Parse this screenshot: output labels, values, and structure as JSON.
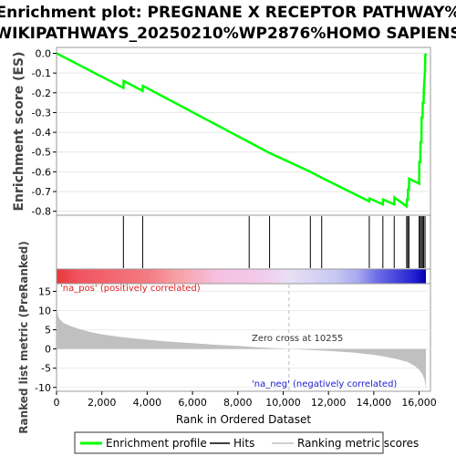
{
  "chart_data": {
    "type": "line",
    "title": [
      "Enrichment plot: PREGNANE X RECEPTOR PATHWAY%",
      "WIKIPATHWAYS_20250210%WP2876%HOMO SAPIENS"
    ],
    "xlabel": "Rank in Ordered Dataset",
    "ylabel_top": "Enrichment score (ES)",
    "ylabel_bottom": "Ranked list metric (PreRanked)",
    "xlim": [
      0,
      16500
    ],
    "x_ticks": [
      0,
      2000,
      4000,
      6000,
      8000,
      10000,
      12000,
      14000,
      16000
    ],
    "x_tick_labels": [
      "0",
      "2,000",
      "4,000",
      "6,000",
      "8,000",
      "10,000",
      "12,000",
      "14,000",
      "16,000"
    ],
    "es_ylim": [
      -0.82,
      0.03
    ],
    "es_ticks": [
      0.0,
      -0.1,
      -0.2,
      -0.3,
      -0.4,
      -0.5,
      -0.6,
      -0.7,
      -0.8
    ],
    "es_tick_labels": [
      "0.0",
      "-0.1",
      "-0.2",
      "-0.3",
      "-0.4",
      "-0.5",
      "-0.6",
      "-0.7",
      "-0.8"
    ],
    "es_curve": {
      "x": [
        0,
        2950,
        2960,
        3800,
        3810,
        8500,
        9400,
        11200,
        11700,
        13800,
        13810,
        14400,
        14410,
        14900,
        14910,
        15450,
        15460,
        15500,
        15510,
        15550,
        15560,
        16000,
        16010,
        16050,
        16060,
        16100,
        16110,
        16150,
        16160,
        16200,
        16210,
        16260,
        16270,
        16300
      ],
      "y": [
        0.0,
        -0.175,
        -0.14,
        -0.19,
        -0.165,
        -0.45,
        -0.505,
        -0.6,
        -0.63,
        -0.75,
        -0.735,
        -0.765,
        -0.74,
        -0.765,
        -0.73,
        -0.775,
        -0.74,
        -0.74,
        -0.69,
        -0.69,
        -0.635,
        -0.66,
        -0.55,
        -0.55,
        -0.45,
        -0.45,
        -0.32,
        -0.33,
        -0.25,
        -0.25,
        -0.18,
        -0.09,
        -0.01,
        0.0
      ],
      "color": "#00ff00"
    },
    "hits": [
      2950,
      3800,
      8500,
      9400,
      11200,
      11700,
      13800,
      14400,
      14900,
      15450,
      15500,
      15550,
      16000,
      16050,
      16100,
      16150,
      16200,
      16260
    ],
    "heatmap_stops": [
      {
        "x": 0,
        "color": "#e8383c"
      },
      {
        "x": 1000,
        "color": "#f05560"
      },
      {
        "x": 4000,
        "color": "#f47a82"
      },
      {
        "x": 5300,
        "color": "#f7a0a5"
      },
      {
        "x": 7100,
        "color": "#f6c0e0"
      },
      {
        "x": 9100,
        "color": "#f1cbeb"
      },
      {
        "x": 10255,
        "color": "#e8e0f4"
      },
      {
        "x": 12300,
        "color": "#c8c8f4"
      },
      {
        "x": 13300,
        "color": "#a8a8f0"
      },
      {
        "x": 14100,
        "color": "#7070e8"
      },
      {
        "x": 15800,
        "color": "#2020d0"
      },
      {
        "x": 16300,
        "color": "#0000b0"
      }
    ],
    "metric_ylim": [
      -11,
      17
    ],
    "metric_ticks": [
      15,
      10,
      5,
      0,
      -5,
      -10
    ],
    "metric_tick_labels": [
      "15",
      "10",
      "5",
      "0",
      "-5",
      "-10"
    ],
    "metric_curve": {
      "x": [
        0,
        100,
        300,
        600,
        1000,
        1500,
        2000,
        3000,
        4000,
        5000,
        6000,
        7000,
        8000,
        9000,
        10255,
        11000,
        12000,
        13000,
        14000,
        14500,
        15000,
        15500,
        15800,
        16000,
        16150,
        16250,
        16300
      ],
      "y": [
        10.5,
        8.0,
        6.8,
        6.0,
        5.2,
        4.4,
        3.8,
        3.0,
        2.4,
        1.9,
        1.5,
        1.1,
        0.8,
        0.4,
        0.0,
        -0.2,
        -0.5,
        -0.9,
        -1.5,
        -2.0,
        -2.6,
        -3.4,
        -4.4,
        -5.4,
        -6.6,
        -8.2,
        -10.3
      ]
    },
    "zero_cross_label": "Zero cross at 10255",
    "zero_cross_x": 10255,
    "na_pos_label": "'na_pos' (positively correlated)",
    "na_neg_label": "'na_neg' (negatively correlated)",
    "legend": [
      "Enrichment profile",
      "Hits",
      "Ranking metric scores"
    ],
    "colors": {
      "es": "#00ff00",
      "hits": "#000000",
      "metric": "#c0c0c0",
      "na_pos": "#e02020",
      "na_neg": "#2020d0",
      "zero_line": "#c8c8c8"
    }
  }
}
